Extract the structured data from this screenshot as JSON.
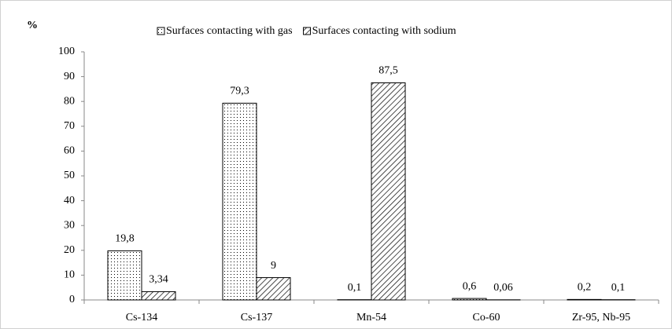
{
  "chart_data": {
    "type": "bar",
    "y_label": "%",
    "categories": [
      "Cs-134",
      "Cs-137",
      "Mn-54",
      "Co-60",
      "Zr-95, Nb-95"
    ],
    "series": [
      {
        "name": "Surfaces contacting with gas",
        "color": "#000000",
        "pattern": "dots",
        "values": [
          19.8,
          79.3,
          0.1,
          0.6,
          0.2
        ],
        "value_labels": [
          "19,8",
          "79,3",
          "0,1",
          "0,6",
          "0,2"
        ]
      },
      {
        "name": "Surfaces contacting with sodium",
        "color": "#000000",
        "pattern": "hatch",
        "values": [
          3.34,
          9,
          87.5,
          0.06,
          0.1
        ],
        "value_labels": [
          "3,34",
          "9",
          "87,5",
          "0,06",
          "0,1"
        ]
      }
    ],
    "ylim": [
      0,
      100
    ],
    "yticks": [
      0,
      10,
      20,
      30,
      40,
      50,
      60,
      70,
      80,
      90,
      100
    ],
    "grid": false,
    "legend": "top"
  }
}
